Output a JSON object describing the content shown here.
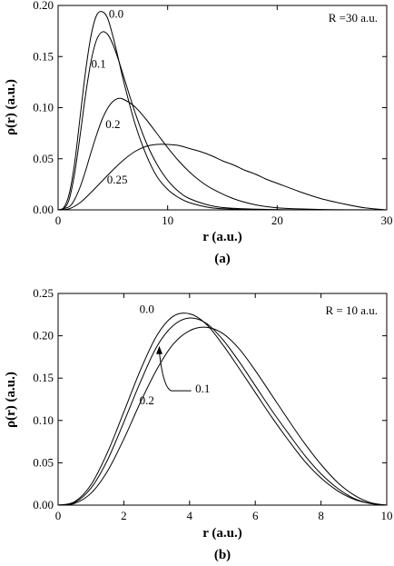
{
  "chart_data": [
    {
      "type": "line",
      "panel_label": "(a)",
      "annotation": "R =30 a.u.",
      "xlabel": "r (a.u.)",
      "ylabel": "ρ(r) (a.u.)",
      "xlim": [
        0,
        30
      ],
      "ylim": [
        0,
        0.2
      ],
      "xticks": [
        0,
        10,
        20,
        30
      ],
      "yticks": [
        0.0,
        0.05,
        0.1,
        0.15,
        0.2
      ],
      "xtick_labels": [
        "0",
        "10",
        "20",
        "30"
      ],
      "ytick_labels": [
        "0.00",
        "0.05",
        "0.10",
        "0.15",
        "0.20"
      ],
      "grid": false,
      "series": [
        {
          "name": "0.0",
          "x": [
            0,
            0.5,
            1,
            1.5,
            2,
            2.5,
            3,
            3.5,
            4,
            4.5,
            5,
            5.5,
            6,
            7,
            8,
            9,
            10,
            11,
            12,
            14,
            16,
            20,
            25,
            30
          ],
          "y": [
            0,
            0.002,
            0.015,
            0.045,
            0.09,
            0.135,
            0.17,
            0.19,
            0.194,
            0.188,
            0.17,
            0.148,
            0.125,
            0.085,
            0.055,
            0.033,
            0.02,
            0.012,
            0.007,
            0.002,
            0.0008,
            0.0001,
            0,
            0
          ]
        },
        {
          "name": "0.1",
          "x": [
            0,
            0.5,
            1,
            1.5,
            2,
            2.5,
            3,
            3.5,
            4,
            4.5,
            5,
            5.5,
            6,
            7,
            8,
            9,
            10,
            11,
            12,
            14,
            16,
            20,
            25,
            30
          ],
          "y": [
            0,
            0.001,
            0.01,
            0.035,
            0.072,
            0.112,
            0.145,
            0.166,
            0.174,
            0.172,
            0.162,
            0.147,
            0.13,
            0.096,
            0.067,
            0.045,
            0.029,
            0.018,
            0.011,
            0.004,
            0.0015,
            0.0002,
            0,
            0
          ]
        },
        {
          "name": "0.2",
          "x": [
            0,
            1,
            1.5,
            2,
            2.5,
            3,
            3.5,
            4,
            4.5,
            5,
            5.5,
            6,
            7,
            8,
            9,
            10,
            11,
            12,
            13,
            14,
            16,
            18,
            20,
            22,
            25,
            30
          ],
          "y": [
            0,
            0.003,
            0.01,
            0.022,
            0.038,
            0.056,
            0.073,
            0.088,
            0.099,
            0.106,
            0.109,
            0.108,
            0.101,
            0.089,
            0.075,
            0.061,
            0.048,
            0.037,
            0.028,
            0.021,
            0.011,
            0.005,
            0.002,
            0.001,
            0.0002,
            0
          ]
        },
        {
          "name": "0.25",
          "x": [
            0,
            1,
            2,
            3,
            4,
            5,
            6,
            7,
            8,
            9,
            10,
            11,
            12,
            13,
            14,
            15,
            16,
            17,
            18,
            19,
            20,
            22,
            24,
            26,
            28,
            30
          ],
          "y": [
            0,
            0.001,
            0.007,
            0.017,
            0.028,
            0.039,
            0.049,
            0.057,
            0.062,
            0.064,
            0.064,
            0.063,
            0.06,
            0.057,
            0.053,
            0.048,
            0.044,
            0.039,
            0.035,
            0.03,
            0.026,
            0.018,
            0.011,
            0.006,
            0.002,
            0
          ]
        }
      ],
      "curve_labels": [
        {
          "text": "0.0",
          "x": 5.3,
          "y": 0.188
        },
        {
          "text": "0.1",
          "x": 3.7,
          "y": 0.139
        },
        {
          "text": "0.2",
          "x": 5.0,
          "y": 0.08
        },
        {
          "text": "0.25",
          "x": 5.4,
          "y": 0.026
        }
      ]
    },
    {
      "type": "line",
      "panel_label": "(b)",
      "annotation": "R = 10 a.u.",
      "xlabel": "r (a.u.)",
      "ylabel": "ρ(r) (a.u.)",
      "xlim": [
        0,
        10
      ],
      "ylim": [
        0,
        0.25
      ],
      "xticks": [
        0,
        2,
        4,
        6,
        8,
        10
      ],
      "yticks": [
        0.0,
        0.05,
        0.1,
        0.15,
        0.2,
        0.25
      ],
      "xtick_labels": [
        "0",
        "2",
        "4",
        "6",
        "8",
        "10"
      ],
      "ytick_labels": [
        "0.00",
        "0.05",
        "0.10",
        "0.15",
        "0.20",
        "0.25"
      ],
      "grid": false,
      "series": [
        {
          "name": "0.0",
          "x": [
            0,
            0.5,
            1,
            1.5,
            2,
            2.5,
            3,
            3.5,
            4,
            4.5,
            5,
            5.5,
            6,
            6.5,
            7,
            7.5,
            8,
            8.5,
            9,
            9.5,
            10
          ],
          "y": [
            0,
            0.004,
            0.024,
            0.062,
            0.11,
            0.159,
            0.2,
            0.223,
            0.226,
            0.214,
            0.19,
            0.162,
            0.133,
            0.104,
            0.077,
            0.052,
            0.032,
            0.017,
            0.007,
            0.002,
            0
          ]
        },
        {
          "name": "0.1",
          "x": [
            0,
            0.5,
            1,
            1.5,
            2,
            2.5,
            3,
            3.5,
            4,
            4.5,
            5,
            5.5,
            6,
            6.5,
            7,
            7.5,
            8,
            8.5,
            9,
            9.5,
            10
          ],
          "y": [
            0,
            0.003,
            0.02,
            0.053,
            0.098,
            0.145,
            0.187,
            0.212,
            0.221,
            0.215,
            0.196,
            0.17,
            0.141,
            0.112,
            0.085,
            0.059,
            0.037,
            0.02,
            0.008,
            0.002,
            0
          ]
        },
        {
          "name": "0.2",
          "x": [
            0,
            0.5,
            1,
            1.5,
            2,
            2.5,
            3,
            3.5,
            4,
            4.5,
            5,
            5.5,
            6,
            6.5,
            7,
            7.5,
            8,
            8.5,
            9,
            9.5,
            10
          ],
          "y": [
            0,
            0.002,
            0.014,
            0.04,
            0.078,
            0.121,
            0.16,
            0.19,
            0.206,
            0.21,
            0.203,
            0.185,
            0.159,
            0.13,
            0.101,
            0.073,
            0.048,
            0.027,
            0.012,
            0.003,
            0
          ]
        }
      ],
      "curve_labels": [
        {
          "text": "0.0",
          "x": 2.7,
          "y": 0.227
        },
        {
          "text": "0.1",
          "x": 4.4,
          "y": 0.133
        },
        {
          "text": "0.2",
          "x": 2.7,
          "y": 0.119
        }
      ],
      "arrow": {
        "from_x": 4.05,
        "from_y": 0.135,
        "to_x": 3.08,
        "to_y": 0.188
      }
    }
  ]
}
